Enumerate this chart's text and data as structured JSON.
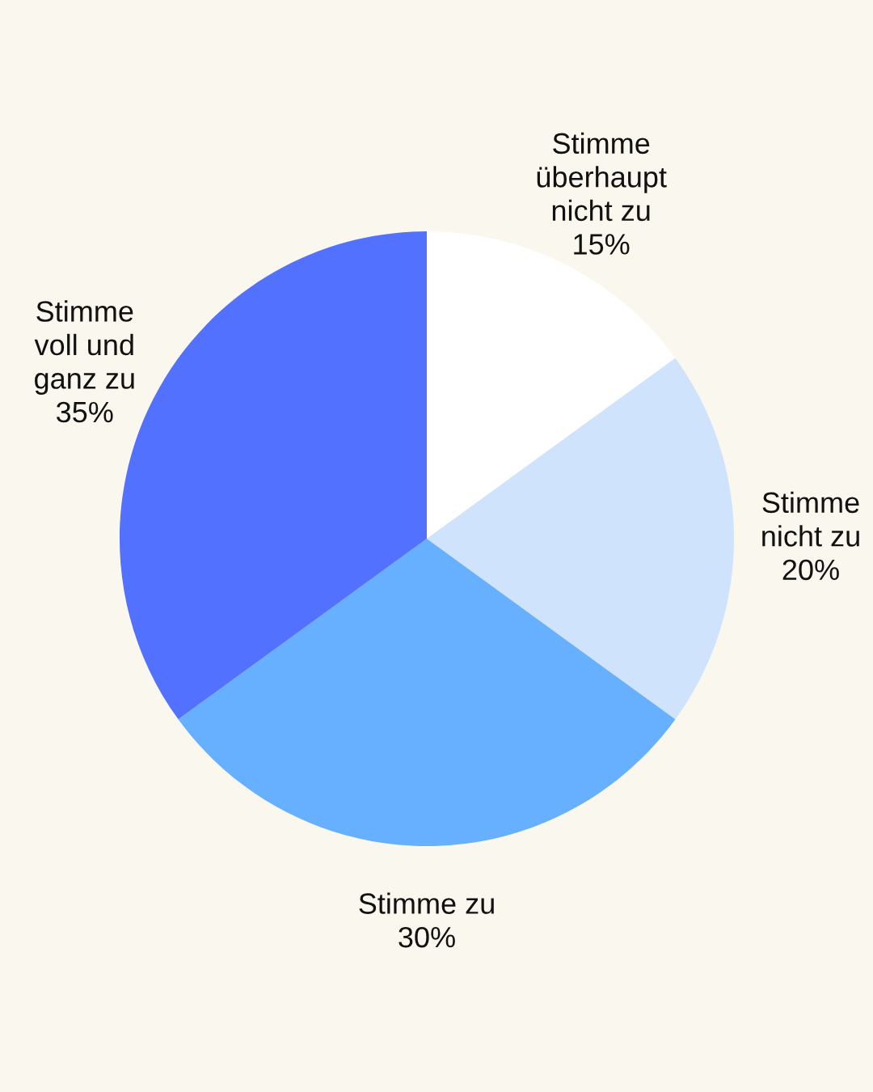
{
  "chart_data": {
    "type": "pie",
    "categories": [
      "Stimme\nüberhaupt\nnicht zu",
      "Stimme\nnicht zu",
      "Stimme zu",
      "Stimme\nvoll und\nganz zu"
    ],
    "values": [
      15,
      20,
      30,
      35
    ],
    "value_labels": [
      "15%",
      "20%",
      "30%",
      "35%"
    ],
    "colors": [
      "#ffffff",
      "#cfe3fd",
      "#66b0ff",
      "#5271ff"
    ]
  }
}
